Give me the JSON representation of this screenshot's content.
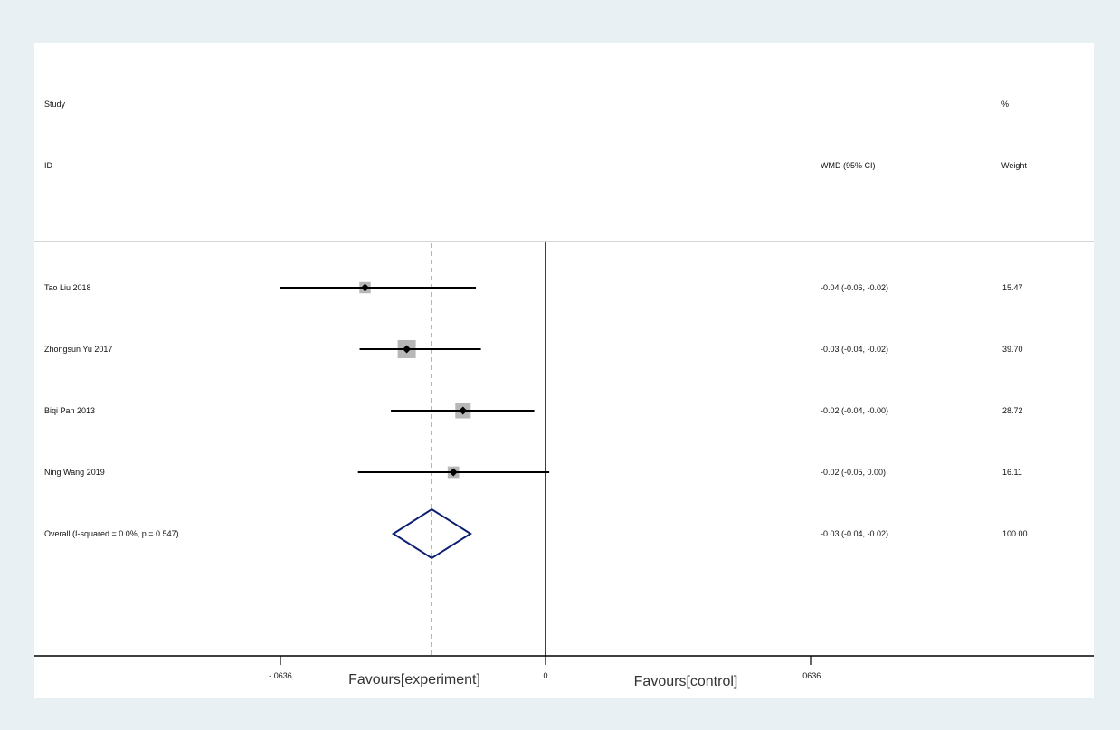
{
  "header": {
    "study_line1": "Study",
    "study_line2": "ID",
    "effect_label": "WMD (95% CI)",
    "weight_line1": "%",
    "weight_line2": "Weight"
  },
  "axis": {
    "favours_left": "Favours[experiment]",
    "favours_right": "Favours[control]"
  },
  "chart_data": {
    "type": "forest",
    "xlim": [
      -0.0636,
      0.0636
    ],
    "ticks": [
      -0.0636,
      0,
      0.0636
    ],
    "tick_labels": [
      "-.0636",
      "0",
      ".0636"
    ],
    "null_line": 0,
    "pooled_line": -0.0273,
    "studies": [
      {
        "id": "Tao Liu 2018",
        "est": -0.0433,
        "lo": -0.0636,
        "hi": -0.0167,
        "ci_label": "-0.04 (-0.06, -0.02)",
        "weight": "15.47"
      },
      {
        "id": "Zhongsun Yu 2017",
        "est": -0.0333,
        "lo": -0.0446,
        "hi": -0.0155,
        "ci_label": "-0.03 (-0.04, -0.02)",
        "weight": "39.70"
      },
      {
        "id": "Biqi Pan 2013",
        "est": -0.0198,
        "lo": -0.0371,
        "hi": -0.0027,
        "ci_label": "-0.02 (-0.04, -0.00)",
        "weight": "28.72"
      },
      {
        "id": "Ning Wang 2019",
        "est": -0.0221,
        "lo": -0.045,
        "hi": 0.0009,
        "ci_label": "-0.02 (-0.05, 0.00)",
        "weight": "16.11"
      }
    ],
    "overall": {
      "id": "Overall  (I-squared = 0.0%, p = 0.547)",
      "est": -0.0273,
      "lo": -0.0365,
      "hi": -0.018,
      "ci_label": "-0.03 (-0.04, -0.02)",
      "weight": "100.00"
    },
    "colors": {
      "ci_line": "#000000",
      "weight_box": "#b7b7b7",
      "point": "#000000",
      "diamond": "#0d1f73",
      "pooled_line": "#a0302a",
      "header_rule": "#c8c8c8"
    }
  }
}
